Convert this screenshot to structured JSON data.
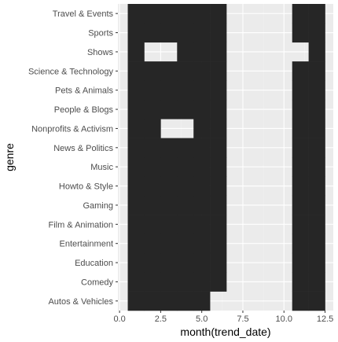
{
  "chart_data": {
    "type": "heatmap",
    "xlabel": "month(trend_date)",
    "ylabel": "genre",
    "xlim": [
      -0.1,
      13.0
    ],
    "x_ticks": [
      0.0,
      2.5,
      5.0,
      7.5,
      10.0,
      12.5
    ],
    "x_tick_labels": [
      "0.0",
      "2.5",
      "5.0",
      "7.5",
      "10.0",
      "12.5"
    ],
    "categories": [
      "Autos & Vehicles",
      "Comedy",
      "Education",
      "Entertainment",
      "Film & Animation",
      "Gaming",
      "Howto & Style",
      "Music",
      "News & Politics",
      "Nonprofits & Activism",
      "People & Blogs",
      "Pets & Animals",
      "Science & Technology",
      "Shows",
      "Sports",
      "Travel & Events"
    ],
    "tiles": [
      {
        "genre": "Autos & Vehicles",
        "months": [
          1,
          2,
          3,
          4,
          5,
          11,
          12
        ]
      },
      {
        "genre": "Comedy",
        "months": [
          1,
          2,
          3,
          4,
          5,
          6,
          11,
          12
        ]
      },
      {
        "genre": "Education",
        "months": [
          1,
          2,
          3,
          4,
          5,
          6,
          11,
          12
        ]
      },
      {
        "genre": "Entertainment",
        "months": [
          1,
          2,
          3,
          4,
          5,
          6,
          11,
          12
        ]
      },
      {
        "genre": "Film & Animation",
        "months": [
          1,
          2,
          3,
          4,
          5,
          6,
          11,
          12
        ]
      },
      {
        "genre": "Gaming",
        "months": [
          1,
          2,
          3,
          4,
          5,
          6,
          11,
          12
        ]
      },
      {
        "genre": "Howto & Style",
        "months": [
          1,
          2,
          3,
          4,
          5,
          6,
          11,
          12
        ]
      },
      {
        "genre": "Music",
        "months": [
          1,
          2,
          3,
          4,
          5,
          6,
          11,
          12
        ]
      },
      {
        "genre": "News & Politics",
        "months": [
          1,
          2,
          3,
          4,
          5,
          6,
          11,
          12
        ]
      },
      {
        "genre": "Nonprofits & Activism",
        "months": [
          1,
          2,
          5,
          6,
          11,
          12
        ]
      },
      {
        "genre": "People & Blogs",
        "months": [
          1,
          2,
          3,
          4,
          5,
          6,
          11,
          12
        ]
      },
      {
        "genre": "Pets & Animals",
        "months": [
          1,
          2,
          3,
          4,
          5,
          6,
          11,
          12
        ]
      },
      {
        "genre": "Science & Technology",
        "months": [
          1,
          2,
          3,
          4,
          5,
          6,
          11,
          12
        ]
      },
      {
        "genre": "Shows",
        "months": [
          1,
          4,
          5,
          6,
          12
        ]
      },
      {
        "genre": "Sports",
        "months": [
          1,
          2,
          3,
          4,
          5,
          6,
          11,
          12
        ]
      },
      {
        "genre": "Travel & Events",
        "months": [
          1,
          2,
          3,
          4,
          5,
          6,
          11,
          12
        ]
      }
    ],
    "grid": true,
    "colors": {
      "tile": "#262626",
      "panel_background": "#ebebeb",
      "grid_major": "#ffffff",
      "grid_minor": "#f2f2f2",
      "tick_text": "#4d4d4d",
      "tick_mark": "#333333"
    }
  }
}
